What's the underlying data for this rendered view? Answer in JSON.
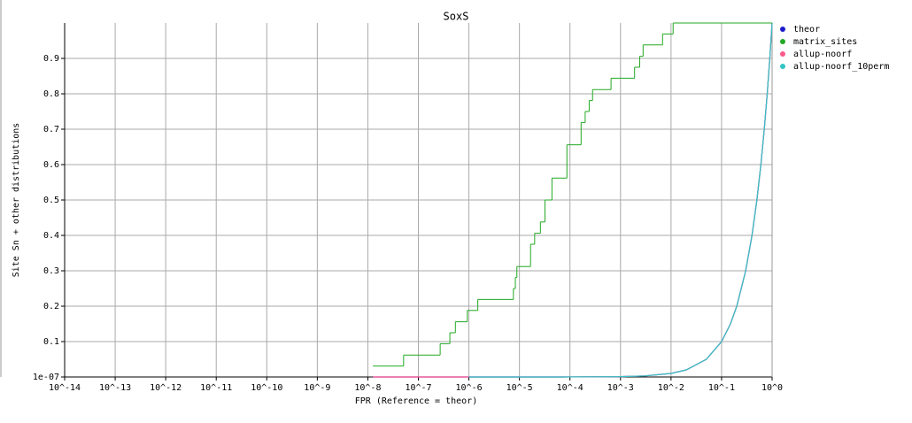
{
  "chart_data": {
    "type": "line",
    "title": "SoxS",
    "xlabel": "FPR (Reference = theor)",
    "ylabel": "Site Sn + other distributions",
    "xscale": "log",
    "grid": true,
    "legend": "outside-top-right",
    "xlim": [
      1e-14,
      1
    ],
    "xticks": [
      {
        "value": 1e-14,
        "label": "10^-14"
      },
      {
        "value": 1e-13,
        "label": "10^-13"
      },
      {
        "value": 1e-12,
        "label": "10^-12"
      },
      {
        "value": 1e-11,
        "label": "10^-11"
      },
      {
        "value": 1e-10,
        "label": "10^-10"
      },
      {
        "value": 1e-09,
        "label": "10^-9"
      },
      {
        "value": 1e-08,
        "label": "10^-8"
      },
      {
        "value": 1e-07,
        "label": "10^-7"
      },
      {
        "value": 1e-06,
        "label": "10^-6"
      },
      {
        "value": 1e-05,
        "label": "10^-5"
      },
      {
        "value": 0.0001,
        "label": "10^-4"
      },
      {
        "value": 0.001,
        "label": "10^-3"
      },
      {
        "value": 0.01,
        "label": "10^-2"
      },
      {
        "value": 0.1,
        "label": "10^-1"
      },
      {
        "value": 1,
        "label": "10^0"
      }
    ],
    "ylim": [
      1e-07,
      1
    ],
    "yticks": [
      {
        "value": 1e-07,
        "label": "1e-07"
      },
      0.1,
      0.2,
      0.3,
      0.4,
      0.5,
      0.6,
      0.7,
      0.8,
      0.9
    ],
    "series": [
      {
        "name": "theor",
        "color": "#1c1cc8",
        "x": [
          1.26e-08,
          1e-07,
          1e-06,
          1e-05,
          0.0001,
          0.001,
          0.003,
          0.01,
          0.02,
          0.05,
          0.1,
          0.15,
          0.2,
          0.3,
          0.4,
          0.5,
          0.6,
          0.7,
          0.8,
          0.9,
          1
        ],
        "values": [
          1.26e-08,
          1e-07,
          1e-06,
          1e-05,
          0.0001,
          0.001,
          0.003,
          0.01,
          0.02,
          0.05,
          0.1,
          0.15,
          0.2,
          0.3,
          0.4,
          0.5,
          0.6,
          0.7,
          0.8,
          0.9,
          1
        ]
      },
      {
        "name": "matrix_sites",
        "color": "#22a822",
        "drawstyle": "steps-post",
        "x": [
          1.26e-08,
          5.1e-08,
          2.7e-07,
          4.2e-07,
          5.4e-07,
          9.3e-07,
          1.5e-06,
          7.6e-06,
          8.3e-06,
          8.9e-06,
          1.66e-05,
          2e-05,
          2.6e-05,
          3.2e-05,
          4.4e-05,
          8.7e-05,
          0.000166,
          0.0002,
          0.00024,
          0.00028,
          0.00065,
          0.0019,
          0.0024,
          0.0028,
          0.0068,
          0.011,
          1
        ],
        "values": [
          0.031,
          0.062,
          0.094,
          0.125,
          0.156,
          0.188,
          0.219,
          0.25,
          0.281,
          0.312,
          0.375,
          0.406,
          0.438,
          0.5,
          0.562,
          0.656,
          0.719,
          0.75,
          0.781,
          0.812,
          0.844,
          0.875,
          0.906,
          0.938,
          0.969,
          1.0,
          1.0
        ]
      },
      {
        "name": "allup-noorf",
        "color": "#ff5a8c",
        "x": [
          1.26e-08,
          1e-07,
          1e-06,
          1e-05,
          0.0001,
          0.001,
          0.003,
          0.01,
          0.02,
          0.05,
          0.1,
          0.15,
          0.2,
          0.3,
          0.4,
          0.5,
          0.6,
          0.7,
          0.8,
          0.9,
          1
        ],
        "values": [
          1.26e-08,
          1e-07,
          1e-06,
          1e-05,
          0.0001,
          0.001,
          0.003,
          0.01,
          0.02,
          0.05,
          0.1,
          0.15,
          0.2,
          0.3,
          0.4,
          0.5,
          0.6,
          0.7,
          0.8,
          0.9,
          1
        ]
      },
      {
        "name": "allup-noorf_10perm",
        "color": "#33c4c4",
        "x": [
          1e-06,
          1e-05,
          0.0001,
          0.001,
          0.003,
          0.01,
          0.02,
          0.05,
          0.1,
          0.15,
          0.2,
          0.3,
          0.4,
          0.5,
          0.6,
          0.7,
          0.8,
          0.9,
          1
        ],
        "values": [
          1e-06,
          1e-05,
          0.0001,
          0.001,
          0.003,
          0.01,
          0.02,
          0.05,
          0.1,
          0.15,
          0.2,
          0.3,
          0.4,
          0.5,
          0.6,
          0.7,
          0.8,
          0.9,
          1
        ]
      }
    ]
  }
}
